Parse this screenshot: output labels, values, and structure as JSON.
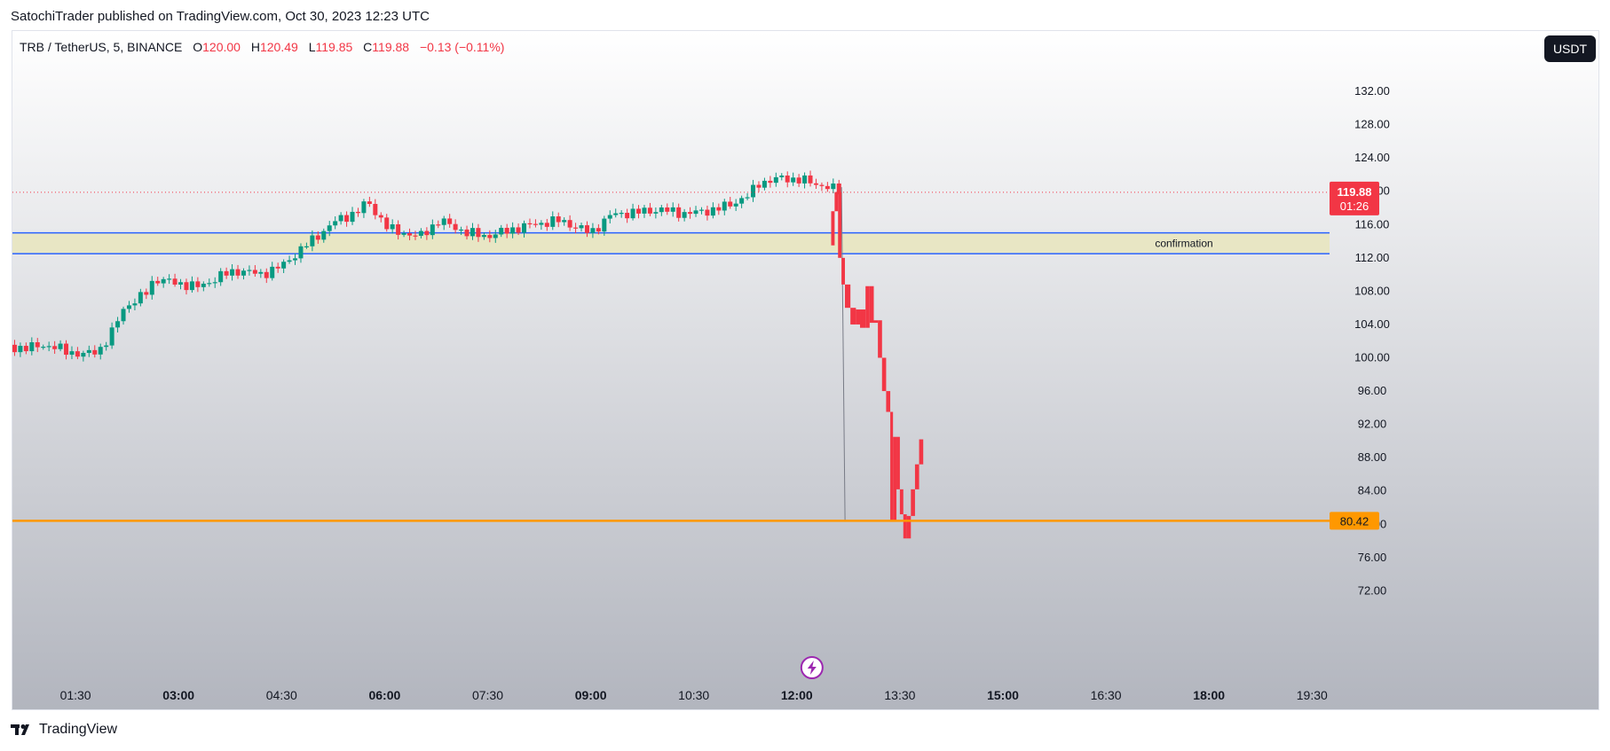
{
  "header": {
    "published_line": "SatochiTrader published on TradingView.com, Oct 30, 2023 12:23 UTC"
  },
  "legend": {
    "symbol": "TRB / TetherUS, 5, BINANCE",
    "open_label": "O",
    "open": "120.00",
    "high_label": "H",
    "high": "120.49",
    "low_label": "L",
    "low": "119.85",
    "close_label": "C",
    "close": "119.88",
    "change": "−0.13 (−0.11%)"
  },
  "currency_button": "USDT",
  "footer": {
    "brand": "TradingView"
  },
  "colors": {
    "up": "#089981",
    "down": "#f23645",
    "zone_fill": "#e8e6c4",
    "zone_line": "#2962ff",
    "support": "#ff9800"
  },
  "chart_data": {
    "type": "candlestick",
    "interval": "5",
    "ylim": [
      72,
      136
    ],
    "y_ticks": [
      "72.00",
      "76.00",
      "80.00",
      "84.00",
      "88.00",
      "92.00",
      "96.00",
      "100.00",
      "104.00",
      "108.00",
      "112.00",
      "116.00",
      "120.00",
      "124.00",
      "128.00",
      "132.00"
    ],
    "x_ticks": [
      {
        "label": "01:30",
        "t": 1.5,
        "bold": false
      },
      {
        "label": "03:00",
        "t": 3.0,
        "bold": true
      },
      {
        "label": "04:30",
        "t": 4.5,
        "bold": false
      },
      {
        "label": "06:00",
        "t": 6.0,
        "bold": true
      },
      {
        "label": "07:30",
        "t": 7.5,
        "bold": false
      },
      {
        "label": "09:00",
        "t": 9.0,
        "bold": true
      },
      {
        "label": "10:30",
        "t": 10.5,
        "bold": false
      },
      {
        "label": "12:00",
        "t": 12.0,
        "bold": true
      },
      {
        "label": "13:30",
        "t": 13.5,
        "bold": false
      },
      {
        "label": "15:00",
        "t": 15.0,
        "bold": true
      },
      {
        "label": "16:30",
        "t": 16.5,
        "bold": false
      },
      {
        "label": "18:00",
        "t": 18.0,
        "bold": true
      },
      {
        "label": "19:30",
        "t": 19.5,
        "bold": false
      }
    ],
    "price_path": [
      [
        0.53,
        101.3
      ],
      [
        0.8,
        101.1
      ],
      [
        1.0,
        101.6
      ],
      [
        1.3,
        101.0
      ],
      [
        1.6,
        100.3
      ],
      [
        1.85,
        101.0
      ],
      [
        2.0,
        102.5
      ],
      [
        2.2,
        106.0
      ],
      [
        2.5,
        107.5
      ],
      [
        2.65,
        109.5
      ],
      [
        2.95,
        109.0
      ],
      [
        3.3,
        108.5
      ],
      [
        3.65,
        110.0
      ],
      [
        3.9,
        110.5
      ],
      [
        4.2,
        110.0
      ],
      [
        4.5,
        111.0
      ],
      [
        4.85,
        113.5
      ],
      [
        5.3,
        116.5
      ],
      [
        5.6,
        117.5
      ],
      [
        5.75,
        118.8
      ],
      [
        6.05,
        115.5
      ],
      [
        6.5,
        114.5
      ],
      [
        6.8,
        116.5
      ],
      [
        7.2,
        115.0
      ],
      [
        7.5,
        114.6
      ],
      [
        7.8,
        115.3
      ],
      [
        8.15,
        116.0
      ],
      [
        8.55,
        116.5
      ],
      [
        8.85,
        115.5
      ],
      [
        9.0,
        115.0
      ],
      [
        9.3,
        117.2
      ],
      [
        9.7,
        117.5
      ],
      [
        10.0,
        117.8
      ],
      [
        10.4,
        117.3
      ],
      [
        10.8,
        117.8
      ],
      [
        11.0,
        118.3
      ],
      [
        11.3,
        119.5
      ],
      [
        11.45,
        121.0
      ],
      [
        11.8,
        121.6
      ],
      [
        12.1,
        121.3
      ],
      [
        12.45,
        120.5
      ],
      [
        12.65,
        119.9
      ]
    ],
    "crash_path": [
      [
        12.5,
        113.5
      ],
      [
        12.55,
        117.6
      ],
      [
        12.6,
        119.9
      ],
      [
        12.65,
        112.0
      ],
      [
        12.7,
        108.8
      ],
      [
        12.78,
        106.0
      ],
      [
        12.86,
        104.0
      ],
      [
        12.92,
        105.8
      ],
      [
        13.0,
        103.6
      ],
      [
        13.06,
        108.6
      ],
      [
        13.12,
        104.2
      ],
      [
        13.18,
        104.5
      ],
      [
        13.24,
        100.0
      ],
      [
        13.3,
        96.0
      ],
      [
        13.36,
        93.5
      ],
      [
        13.4,
        80.5
      ],
      [
        13.45,
        90.5
      ],
      [
        13.5,
        84.2
      ],
      [
        13.55,
        81.2
      ],
      [
        13.6,
        78.3
      ],
      [
        13.66,
        81.0
      ],
      [
        13.72,
        84.2
      ],
      [
        13.78,
        87.2
      ],
      [
        13.84,
        90.2
      ]
    ],
    "wick": {
      "t": 12.65,
      "from": 120.49,
      "to": 80.42
    },
    "zone": {
      "top": 115.0,
      "bottom": 112.5,
      "label": "confirmation"
    },
    "support": {
      "price": 80.42,
      "label": "80.42"
    },
    "last_price": {
      "price": 119.88,
      "label": "119.88",
      "countdown": "01:26"
    },
    "marker_t": 12.22
  }
}
